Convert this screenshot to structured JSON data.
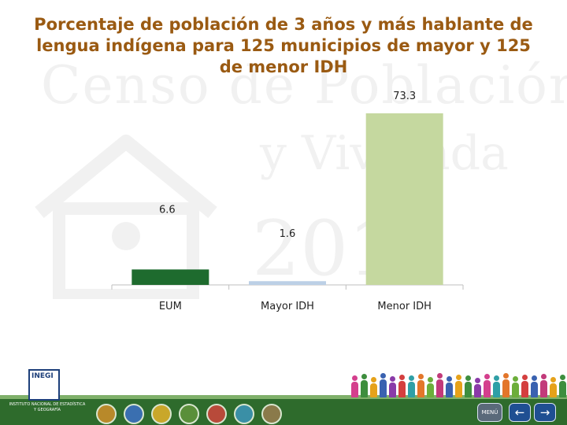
{
  "title": "Porcentaje de población de 3 años y más hablante de lengua indígena para 125 municipios de mayor y 125 de menor IDH",
  "watermark": {
    "line1": "Censo de Población",
    "line2": "y Vivienda",
    "line3": "2010"
  },
  "chart_data": {
    "type": "bar",
    "title": "Porcentaje de población de 3 años y más hablante de lengua indígena para 125 municipios de mayor y 125 de menor IDH",
    "categories": [
      "EUM",
      "Mayor IDH",
      "Menor IDH"
    ],
    "values": [
      6.6,
      1.6,
      73.3
    ],
    "value_labels": [
      "6.6",
      "1.6",
      "73.3"
    ],
    "colors": [
      "#1e6b2e",
      "#bcd0e6",
      "#c5d89f"
    ],
    "xlabel": "",
    "ylabel": "",
    "ylim": [
      0,
      78
    ],
    "grid": false,
    "legend": "none"
  },
  "footer": {
    "logo_text": "INEGI",
    "logo_subtitle": "INSTITUTO NACIONAL DE ESTADÍSTICA Y GEOGRAFÍA",
    "menu_label": "MENÚ",
    "nav_icons": [
      "globe-icon",
      "info-icon",
      "people-icon",
      "person-icon",
      "home-icon",
      "map-icon",
      "book-icon"
    ],
    "back_arrow": "←",
    "forward_arrow": "→",
    "accent": "#2e6b2c"
  }
}
